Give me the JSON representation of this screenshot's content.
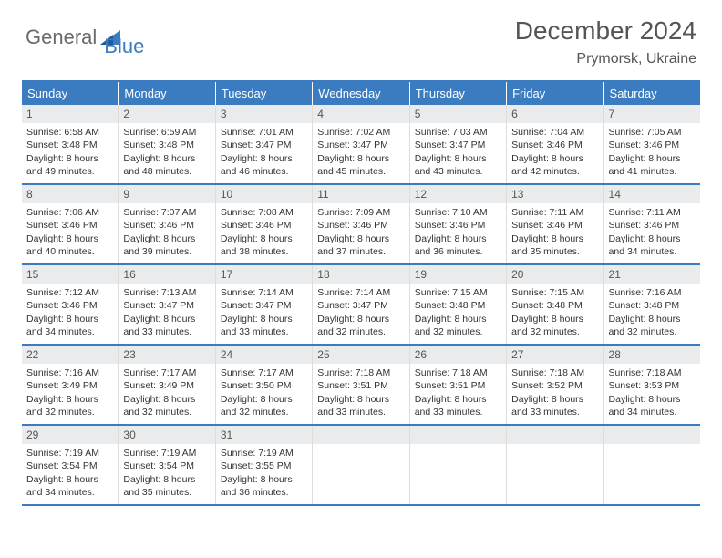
{
  "logo": {
    "part1": "General",
    "part2": "Blue"
  },
  "title": "December 2024",
  "location": "Prymorsk, Ukraine",
  "colors": {
    "accent": "#3b7bbf",
    "header_bg": "#3b7bbf",
    "header_text": "#ffffff",
    "daynum_bg": "#e9ebed",
    "text": "#333333",
    "logo_gray": "#6a6a6a"
  },
  "fonts": {
    "title_size": 28,
    "location_size": 16,
    "dayhead_size": 13,
    "body_size": 10.5
  },
  "dayheads": [
    "Sunday",
    "Monday",
    "Tuesday",
    "Wednesday",
    "Thursday",
    "Friday",
    "Saturday"
  ],
  "weeks": [
    [
      {
        "n": "1",
        "sunrise": "Sunrise: 6:58 AM",
        "sunset": "Sunset: 3:48 PM",
        "daylight": "Daylight: 8 hours and 49 minutes."
      },
      {
        "n": "2",
        "sunrise": "Sunrise: 6:59 AM",
        "sunset": "Sunset: 3:48 PM",
        "daylight": "Daylight: 8 hours and 48 minutes."
      },
      {
        "n": "3",
        "sunrise": "Sunrise: 7:01 AM",
        "sunset": "Sunset: 3:47 PM",
        "daylight": "Daylight: 8 hours and 46 minutes."
      },
      {
        "n": "4",
        "sunrise": "Sunrise: 7:02 AM",
        "sunset": "Sunset: 3:47 PM",
        "daylight": "Daylight: 8 hours and 45 minutes."
      },
      {
        "n": "5",
        "sunrise": "Sunrise: 7:03 AM",
        "sunset": "Sunset: 3:47 PM",
        "daylight": "Daylight: 8 hours and 43 minutes."
      },
      {
        "n": "6",
        "sunrise": "Sunrise: 7:04 AM",
        "sunset": "Sunset: 3:46 PM",
        "daylight": "Daylight: 8 hours and 42 minutes."
      },
      {
        "n": "7",
        "sunrise": "Sunrise: 7:05 AM",
        "sunset": "Sunset: 3:46 PM",
        "daylight": "Daylight: 8 hours and 41 minutes."
      }
    ],
    [
      {
        "n": "8",
        "sunrise": "Sunrise: 7:06 AM",
        "sunset": "Sunset: 3:46 PM",
        "daylight": "Daylight: 8 hours and 40 minutes."
      },
      {
        "n": "9",
        "sunrise": "Sunrise: 7:07 AM",
        "sunset": "Sunset: 3:46 PM",
        "daylight": "Daylight: 8 hours and 39 minutes."
      },
      {
        "n": "10",
        "sunrise": "Sunrise: 7:08 AM",
        "sunset": "Sunset: 3:46 PM",
        "daylight": "Daylight: 8 hours and 38 minutes."
      },
      {
        "n": "11",
        "sunrise": "Sunrise: 7:09 AM",
        "sunset": "Sunset: 3:46 PM",
        "daylight": "Daylight: 8 hours and 37 minutes."
      },
      {
        "n": "12",
        "sunrise": "Sunrise: 7:10 AM",
        "sunset": "Sunset: 3:46 PM",
        "daylight": "Daylight: 8 hours and 36 minutes."
      },
      {
        "n": "13",
        "sunrise": "Sunrise: 7:11 AM",
        "sunset": "Sunset: 3:46 PM",
        "daylight": "Daylight: 8 hours and 35 minutes."
      },
      {
        "n": "14",
        "sunrise": "Sunrise: 7:11 AM",
        "sunset": "Sunset: 3:46 PM",
        "daylight": "Daylight: 8 hours and 34 minutes."
      }
    ],
    [
      {
        "n": "15",
        "sunrise": "Sunrise: 7:12 AM",
        "sunset": "Sunset: 3:46 PM",
        "daylight": "Daylight: 8 hours and 34 minutes."
      },
      {
        "n": "16",
        "sunrise": "Sunrise: 7:13 AM",
        "sunset": "Sunset: 3:47 PM",
        "daylight": "Daylight: 8 hours and 33 minutes."
      },
      {
        "n": "17",
        "sunrise": "Sunrise: 7:14 AM",
        "sunset": "Sunset: 3:47 PM",
        "daylight": "Daylight: 8 hours and 33 minutes."
      },
      {
        "n": "18",
        "sunrise": "Sunrise: 7:14 AM",
        "sunset": "Sunset: 3:47 PM",
        "daylight": "Daylight: 8 hours and 32 minutes."
      },
      {
        "n": "19",
        "sunrise": "Sunrise: 7:15 AM",
        "sunset": "Sunset: 3:48 PM",
        "daylight": "Daylight: 8 hours and 32 minutes."
      },
      {
        "n": "20",
        "sunrise": "Sunrise: 7:15 AM",
        "sunset": "Sunset: 3:48 PM",
        "daylight": "Daylight: 8 hours and 32 minutes."
      },
      {
        "n": "21",
        "sunrise": "Sunrise: 7:16 AM",
        "sunset": "Sunset: 3:48 PM",
        "daylight": "Daylight: 8 hours and 32 minutes."
      }
    ],
    [
      {
        "n": "22",
        "sunrise": "Sunrise: 7:16 AM",
        "sunset": "Sunset: 3:49 PM",
        "daylight": "Daylight: 8 hours and 32 minutes."
      },
      {
        "n": "23",
        "sunrise": "Sunrise: 7:17 AM",
        "sunset": "Sunset: 3:49 PM",
        "daylight": "Daylight: 8 hours and 32 minutes."
      },
      {
        "n": "24",
        "sunrise": "Sunrise: 7:17 AM",
        "sunset": "Sunset: 3:50 PM",
        "daylight": "Daylight: 8 hours and 32 minutes."
      },
      {
        "n": "25",
        "sunrise": "Sunrise: 7:18 AM",
        "sunset": "Sunset: 3:51 PM",
        "daylight": "Daylight: 8 hours and 33 minutes."
      },
      {
        "n": "26",
        "sunrise": "Sunrise: 7:18 AM",
        "sunset": "Sunset: 3:51 PM",
        "daylight": "Daylight: 8 hours and 33 minutes."
      },
      {
        "n": "27",
        "sunrise": "Sunrise: 7:18 AM",
        "sunset": "Sunset: 3:52 PM",
        "daylight": "Daylight: 8 hours and 33 minutes."
      },
      {
        "n": "28",
        "sunrise": "Sunrise: 7:18 AM",
        "sunset": "Sunset: 3:53 PM",
        "daylight": "Daylight: 8 hours and 34 minutes."
      }
    ],
    [
      {
        "n": "29",
        "sunrise": "Sunrise: 7:19 AM",
        "sunset": "Sunset: 3:54 PM",
        "daylight": "Daylight: 8 hours and 34 minutes."
      },
      {
        "n": "30",
        "sunrise": "Sunrise: 7:19 AM",
        "sunset": "Sunset: 3:54 PM",
        "daylight": "Daylight: 8 hours and 35 minutes."
      },
      {
        "n": "31",
        "sunrise": "Sunrise: 7:19 AM",
        "sunset": "Sunset: 3:55 PM",
        "daylight": "Daylight: 8 hours and 36 minutes."
      },
      {
        "empty": true
      },
      {
        "empty": true
      },
      {
        "empty": true
      },
      {
        "empty": true
      }
    ]
  ]
}
